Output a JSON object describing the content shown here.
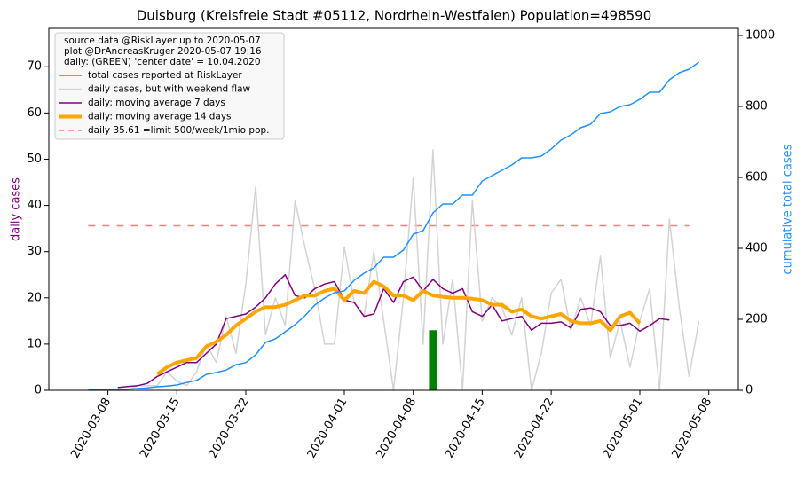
{
  "chart_data": {
    "type": "line",
    "title": "Duisburg (Kreisfreie Stadt #05112, Nordrhein-Westfalen) Population=498590",
    "y_label": "daily cases",
    "y_label_color": "#800080",
    "y2_label": "cumulative total cases",
    "y2_label_color": "#1e90ff",
    "xlim": [
      "2020-03-02",
      "2020-05-11"
    ],
    "xticks": [
      "2020-03-08",
      "2020-03-15",
      "2020-03-22",
      "2020-04-01",
      "2020-04-08",
      "2020-04-15",
      "2020-04-22",
      "2020-05-01",
      "2020-05-08"
    ],
    "ylim": [
      0,
      78.3
    ],
    "yticks": [
      0,
      10,
      20,
      30,
      40,
      50,
      60,
      70
    ],
    "y2lim": [
      0,
      1020
    ],
    "y2ticks": [
      0,
      200,
      400,
      600,
      800,
      1000
    ],
    "legend": {
      "position": "upper left",
      "title": [
        "source data @RiskLayer up to 2020-05-07",
        "plot @DrAndreasKruger 2020-05-07 19:16",
        "daily: (GREEN) 'center date' = 10.04.2020"
      ]
    },
    "x": [
      "2020-03-06",
      "2020-03-07",
      "2020-03-08",
      "2020-03-09",
      "2020-03-10",
      "2020-03-11",
      "2020-03-12",
      "2020-03-13",
      "2020-03-14",
      "2020-03-15",
      "2020-03-16",
      "2020-03-17",
      "2020-03-18",
      "2020-03-19",
      "2020-03-20",
      "2020-03-21",
      "2020-03-22",
      "2020-03-23",
      "2020-03-24",
      "2020-03-25",
      "2020-03-26",
      "2020-03-27",
      "2020-03-28",
      "2020-03-29",
      "2020-03-30",
      "2020-03-31",
      "2020-04-01",
      "2020-04-02",
      "2020-04-03",
      "2020-04-04",
      "2020-04-05",
      "2020-04-06",
      "2020-04-07",
      "2020-04-08",
      "2020-04-09",
      "2020-04-10",
      "2020-04-11",
      "2020-04-12",
      "2020-04-13",
      "2020-04-14",
      "2020-04-15",
      "2020-04-16",
      "2020-04-17",
      "2020-04-18",
      "2020-04-19",
      "2020-04-20",
      "2020-04-21",
      "2020-04-22",
      "2020-04-23",
      "2020-04-24",
      "2020-04-25",
      "2020-04-26",
      "2020-04-27",
      "2020-04-28",
      "2020-04-29",
      "2020-04-30",
      "2020-05-01",
      "2020-05-02",
      "2020-05-03",
      "2020-05-04",
      "2020-05-05",
      "2020-05-06",
      "2020-05-07"
    ],
    "series": [
      {
        "name": "total cases reported at RiskLayer",
        "color": "#1e90ff",
        "linewidth": 1.5,
        "axis": "y2",
        "values": [
          2,
          2,
          2,
          2,
          3,
          5,
          7,
          10,
          12,
          15,
          22,
          28,
          45,
          50,
          57,
          72,
          78,
          100,
          135,
          145,
          165,
          185,
          210,
          240,
          260,
          275,
          280,
          310,
          330,
          345,
          375,
          375,
          395,
          440,
          450,
          500,
          525,
          525,
          550,
          550,
          590,
          605,
          620,
          635,
          655,
          655,
          660,
          680,
          705,
          720,
          740,
          750,
          780,
          785,
          800,
          805,
          820,
          840,
          840,
          875,
          895,
          905,
          925
        ]
      },
      {
        "name": "daily cases, but with weekend flaw",
        "color": "#d3d3d3",
        "linewidth": 1.5,
        "values": [
          0,
          0,
          0,
          0,
          0,
          1,
          1,
          1,
          4,
          2,
          1,
          4,
          10,
          6,
          16,
          8,
          23,
          44,
          12,
          20,
          14,
          41,
          31,
          22,
          10,
          10,
          31,
          19,
          16,
          30,
          15,
          0,
          20,
          46,
          10,
          52,
          10,
          24,
          0,
          41,
          15,
          20,
          18,
          12,
          20,
          0,
          8,
          21,
          24,
          13,
          20,
          14,
          29,
          7,
          15,
          5,
          15,
          22,
          0,
          37,
          18,
          3,
          15
        ]
      },
      {
        "name": "daily: moving average 7 days",
        "color": "#800080",
        "linewidth": 1.5,
        "values": [
          null,
          null,
          null,
          0.6,
          0.8,
          1,
          1.5,
          3,
          4,
          5,
          6,
          6,
          8,
          10,
          15.5,
          16,
          16.5,
          18,
          20,
          23,
          25,
          20.5,
          20,
          22,
          23,
          23.5,
          19.5,
          19,
          16,
          16.5,
          22,
          19,
          23.5,
          24.5,
          21.5,
          24,
          22,
          21,
          22,
          17,
          16,
          18.5,
          15,
          15.5,
          16,
          13,
          14.5,
          14.5,
          14.8,
          13.5,
          17.5,
          17.8,
          17,
          14,
          14,
          14.5,
          12.8,
          14,
          15.5,
          15.2,
          null,
          null,
          null
        ]
      },
      {
        "name": "daily: moving average 14 days",
        "color": "#ffa500",
        "linewidth": 4,
        "values": [
          null,
          null,
          null,
          null,
          null,
          null,
          null,
          3.5,
          5,
          6,
          6.5,
          7,
          9.5,
          10.5,
          12,
          14,
          15.5,
          17,
          18,
          18,
          18.5,
          19.5,
          20.5,
          20.5,
          21.5,
          22,
          19.5,
          21.5,
          21,
          23.5,
          22.5,
          20.5,
          20.5,
          19.5,
          21.5,
          20.5,
          20.2,
          20,
          20,
          19.8,
          19.5,
          18.5,
          18.5,
          17,
          17.5,
          16,
          15.5,
          16,
          16.5,
          15,
          14.5,
          14.5,
          15,
          13,
          16,
          16.8,
          14.5,
          null,
          null,
          null,
          null,
          null,
          null
        ]
      }
    ],
    "hline": {
      "name": "daily 35.61 =limit 500/week/1mio pop.",
      "value": 35.61,
      "from": "2020-03-06",
      "to": "2020-05-06",
      "color": "#f08080"
    },
    "marker": {
      "x": "2020-04-10",
      "value": 13,
      "color": "#008000"
    }
  }
}
